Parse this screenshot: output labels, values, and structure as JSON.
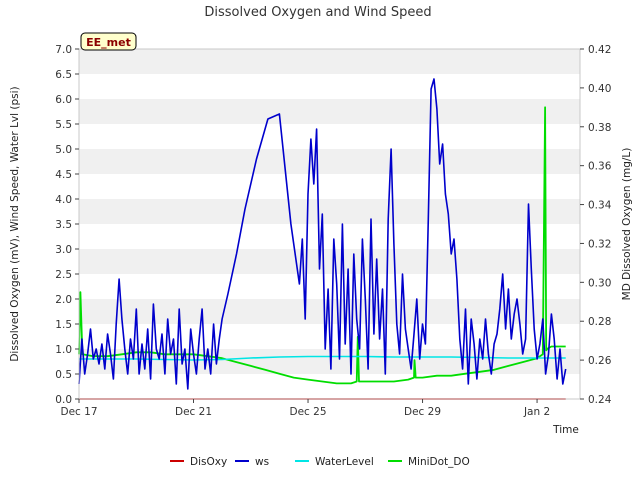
{
  "chart_data": {
    "type": "line",
    "title": "Dissolved Oxygen and Wind Speed",
    "xlabel": "Time",
    "ylabel_left": "Dissolved Oxygen (mV), Wind Speed, Water Lvl (psi)",
    "ylabel_right": "MD Dissolved Oxygen (mg/L)",
    "station_badge": "EE_met",
    "x_range_days": [
      0,
      17.5
    ],
    "x_ticks": [
      {
        "day": 0,
        "label": "Dec 17"
      },
      {
        "day": 4,
        "label": "Dec 21"
      },
      {
        "day": 8,
        "label": "Dec 25"
      },
      {
        "day": 12,
        "label": "Dec 29"
      },
      {
        "day": 16,
        "label": "Jan 2"
      }
    ],
    "ylim_left": [
      0,
      7
    ],
    "yticks_left": [
      "0.0",
      "0.5",
      "1.0",
      "1.5",
      "2.0",
      "2.5",
      "3.0",
      "3.5",
      "4.0",
      "4.5",
      "5.0",
      "5.5",
      "6.0",
      "6.5",
      "7.0"
    ],
    "ylim_right": [
      0.24,
      0.42
    ],
    "yticks_right": [
      "0.24",
      "0.26",
      "0.28",
      "0.30",
      "0.32",
      "0.34",
      "0.36",
      "0.38",
      "0.40",
      "0.42"
    ],
    "grid": "horizontal bands",
    "legend_position": "bottom",
    "series": [
      {
        "name": "DisOxy",
        "color": "#cc0000",
        "axis": "left",
        "x": [
          0.0,
          17.0
        ],
        "y": [
          0.0,
          0.0
        ]
      },
      {
        "name": "ws",
        "color": "#0000cc",
        "axis": "left",
        "x": [
          0.0,
          0.1,
          0.2,
          0.3,
          0.4,
          0.5,
          0.6,
          0.7,
          0.8,
          0.9,
          1.0,
          1.1,
          1.2,
          1.3,
          1.4,
          1.5,
          1.6,
          1.7,
          1.8,
          1.9,
          2.0,
          2.1,
          2.2,
          2.3,
          2.4,
          2.5,
          2.6,
          2.7,
          2.8,
          2.9,
          3.0,
          3.1,
          3.2,
          3.3,
          3.4,
          3.5,
          3.6,
          3.7,
          3.8,
          3.9,
          4.0,
          4.1,
          4.2,
          4.3,
          4.4,
          4.5,
          4.6,
          4.7,
          4.8,
          4.9,
          5.0,
          5.2,
          5.5,
          5.8,
          6.2,
          6.6,
          7.0,
          7.4,
          7.7,
          7.8,
          7.9,
          8.0,
          8.1,
          8.2,
          8.3,
          8.4,
          8.5,
          8.6,
          8.7,
          8.8,
          8.9,
          9.0,
          9.1,
          9.2,
          9.3,
          9.4,
          9.5,
          9.6,
          9.7,
          9.8,
          9.9,
          10.0,
          10.1,
          10.2,
          10.3,
          10.4,
          10.5,
          10.6,
          10.7,
          10.8,
          10.9,
          11.0,
          11.1,
          11.2,
          11.3,
          11.4,
          11.5,
          11.6,
          11.7,
          11.8,
          11.9,
          12.0,
          12.1,
          12.2,
          12.3,
          12.4,
          12.5,
          12.6,
          12.7,
          12.8,
          12.9,
          13.0,
          13.1,
          13.2,
          13.3,
          13.4,
          13.5,
          13.6,
          13.7,
          13.8,
          13.9,
          14.0,
          14.1,
          14.2,
          14.3,
          14.4,
          14.5,
          14.6,
          14.7,
          14.8,
          14.9,
          15.0,
          15.1,
          15.2,
          15.3,
          15.4,
          15.5,
          15.6,
          15.7,
          15.8,
          15.9,
          16.0,
          16.1,
          16.2,
          16.3,
          16.4,
          16.5,
          16.6,
          16.7,
          16.8,
          16.9,
          17.0
        ],
        "y": [
          0.3,
          1.2,
          0.5,
          0.9,
          1.4,
          0.8,
          1.0,
          0.7,
          1.1,
          0.6,
          1.3,
          0.9,
          0.4,
          1.5,
          2.4,
          1.6,
          1.0,
          0.5,
          1.2,
          0.8,
          1.8,
          0.5,
          1.1,
          0.6,
          1.4,
          0.4,
          1.9,
          1.0,
          0.8,
          1.3,
          0.5,
          1.6,
          0.9,
          1.2,
          0.3,
          1.8,
          0.7,
          1.0,
          0.2,
          1.4,
          0.9,
          0.5,
          1.2,
          1.8,
          0.6,
          1.0,
          0.5,
          1.5,
          0.7,
          1.2,
          1.6,
          2.1,
          2.9,
          3.8,
          4.8,
          5.6,
          5.7,
          3.5,
          2.3,
          3.2,
          1.6,
          4.1,
          5.2,
          4.3,
          5.4,
          2.6,
          3.7,
          1.0,
          2.2,
          0.6,
          3.2,
          2.3,
          0.8,
          3.5,
          1.1,
          2.6,
          0.5,
          2.9,
          1.6,
          1.0,
          3.2,
          2.0,
          0.6,
          3.6,
          1.3,
          2.8,
          1.2,
          2.2,
          0.5,
          3.6,
          5.0,
          3.1,
          1.5,
          0.9,
          2.5,
          1.4,
          1.0,
          0.6,
          1.3,
          2.0,
          0.8,
          1.5,
          1.1,
          3.6,
          6.2,
          6.4,
          5.8,
          4.7,
          5.1,
          4.1,
          3.7,
          2.9,
          3.2,
          2.4,
          1.2,
          0.6,
          1.8,
          0.3,
          1.6,
          1.1,
          0.4,
          1.2,
          0.8,
          1.6,
          0.9,
          0.5,
          1.1,
          1.3,
          1.8,
          2.5,
          1.4,
          2.2,
          1.2,
          1.7,
          2.0,
          1.5,
          0.9,
          1.2,
          3.9,
          2.6,
          1.4,
          0.8,
          1.1,
          1.6,
          0.5,
          0.9,
          1.7,
          1.2,
          0.4,
          1.0,
          0.3,
          0.6
        ]
      },
      {
        "name": "WaterLevel",
        "color": "#00e5e5",
        "axis": "left",
        "x": [
          0,
          1,
          2,
          3,
          4,
          5,
          6,
          7,
          8,
          9,
          10,
          11,
          12,
          13,
          14,
          15,
          16,
          17
        ],
        "y": [
          0.8,
          0.8,
          0.8,
          0.79,
          0.78,
          0.79,
          0.82,
          0.84,
          0.85,
          0.85,
          0.85,
          0.84,
          0.84,
          0.84,
          0.83,
          0.82,
          0.82,
          0.82
        ]
      },
      {
        "name": "MiniDot_DO",
        "color": "#00dd00",
        "axis": "right",
        "x": [
          0,
          0.05,
          0.12,
          0.5,
          1.0,
          1.5,
          2.0,
          2.5,
          3.0,
          3.5,
          4.0,
          4.5,
          5.0,
          5.5,
          6.0,
          6.5,
          7.0,
          7.5,
          8.0,
          8.5,
          9.0,
          9.5,
          9.7,
          9.74,
          9.78,
          10.0,
          10.5,
          11.0,
          11.5,
          11.7,
          11.72,
          11.76,
          12.0,
          12.5,
          13.0,
          13.5,
          14.0,
          14.5,
          15.0,
          15.5,
          16.0,
          16.2,
          16.28,
          16.32,
          16.38,
          16.5,
          16.8,
          17.0
        ],
        "y": [
          0.263,
          0.295,
          0.263,
          0.262,
          0.262,
          0.263,
          0.264,
          0.264,
          0.263,
          0.263,
          0.263,
          0.262,
          0.261,
          0.259,
          0.257,
          0.255,
          0.253,
          0.251,
          0.25,
          0.249,
          0.248,
          0.248,
          0.249,
          0.272,
          0.249,
          0.249,
          0.249,
          0.249,
          0.25,
          0.251,
          0.26,
          0.251,
          0.251,
          0.252,
          0.252,
          0.253,
          0.254,
          0.255,
          0.257,
          0.259,
          0.261,
          0.263,
          0.39,
          0.265,
          0.266,
          0.267,
          0.267,
          0.267
        ]
      }
    ]
  }
}
